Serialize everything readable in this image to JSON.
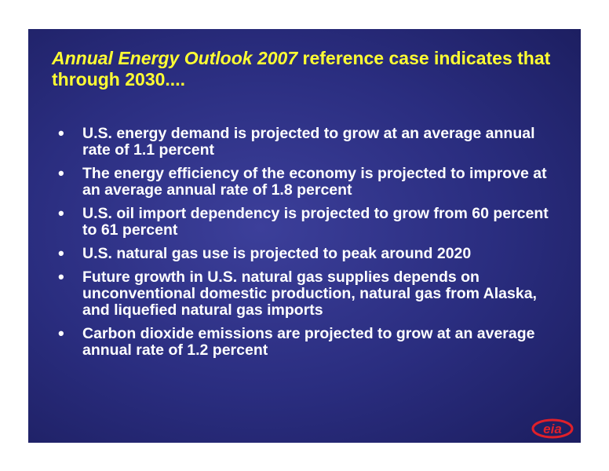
{
  "slide": {
    "title_italic": "Annual Energy Outlook 2007",
    "title_rest": " reference case indicates that through 2030....",
    "bullets": [
      "U.S. energy demand is projected to grow at an average annual rate of 1.1 percent",
      "The energy efficiency of the economy is projected to improve at an average annual rate of 1.8 percent",
      "U.S. oil import dependency is projected to grow from 60 percent to 61 percent",
      "U.S. natural gas use is projected to peak around 2020",
      "Future growth in U.S. natural gas supplies depends on unconventional domestic production, natural gas from Alaska, and liquefied natural gas imports",
      "Carbon dioxide emissions are projected to grow at an average annual rate of 1.2 percent"
    ],
    "logo_text": "eia"
  },
  "colors": {
    "title": "#ffff33",
    "text": "#ffffff",
    "background": "#2a2d7f",
    "logo": "#e0202a"
  }
}
